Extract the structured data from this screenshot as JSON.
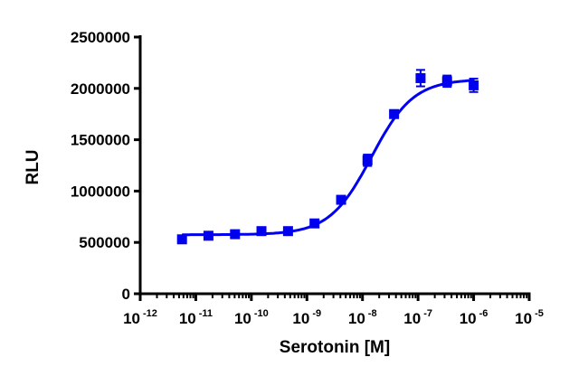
{
  "chart_data": {
    "type": "scatter",
    "xlabel": "Serotonin [M]",
    "ylabel": "RLU",
    "xscale": "log",
    "xlim": [
      1e-12,
      1e-05
    ],
    "ylim": [
      0,
      2500000
    ],
    "yticks": [
      0,
      500000,
      1000000,
      1500000,
      2000000,
      2500000
    ],
    "ytick_labels": [
      "0",
      "500000",
      "1000000",
      "1500000",
      "2000000",
      "2500000"
    ],
    "xticks": [
      {
        "base": "10",
        "exp": "-12",
        "value": 1e-12
      },
      {
        "base": "10",
        "exp": "-11",
        "value": 1e-11
      },
      {
        "base": "10",
        "exp": "-10",
        "value": 1e-10
      },
      {
        "base": "10",
        "exp": "-9",
        "value": 1e-09
      },
      {
        "base": "10",
        "exp": "-8",
        "value": 1e-08
      },
      {
        "base": "10",
        "exp": "-7",
        "value": 1e-07
      },
      {
        "base": "10",
        "exp": "-6",
        "value": 1e-06
      },
      {
        "base": "10",
        "exp": "-5",
        "value": 1e-05
      }
    ],
    "grid": false,
    "color": "#0000ee",
    "marker": "square",
    "points": [
      {
        "x": 5.65e-12,
        "y": 530000,
        "err": 20000
      },
      {
        "x": 1.69e-11,
        "y": 565000,
        "err": 15000
      },
      {
        "x": 5.08e-11,
        "y": 580000,
        "err": 15000
      },
      {
        "x": 1.52e-10,
        "y": 610000,
        "err": 20000
      },
      {
        "x": 4.57e-10,
        "y": 610000,
        "err": 15000
      },
      {
        "x": 1.37e-09,
        "y": 685000,
        "err": 20000
      },
      {
        "x": 4.12e-09,
        "y": 915000,
        "err": 25000
      },
      {
        "x": 1.23e-08,
        "y": 1300000,
        "err": 55000
      },
      {
        "x": 3.7e-08,
        "y": 1750000,
        "err": 30000
      },
      {
        "x": 1.11e-07,
        "y": 2100000,
        "err": 80000
      },
      {
        "x": 3.33e-07,
        "y": 2070000,
        "err": 55000
      },
      {
        "x": 1e-06,
        "y": 2030000,
        "err": 65000
      }
    ],
    "curve": {
      "model": "sigmoidal dose-response",
      "bottom": 575000,
      "top": 2090000,
      "ec50": 1.45e-08,
      "hill": 1.15
    }
  }
}
